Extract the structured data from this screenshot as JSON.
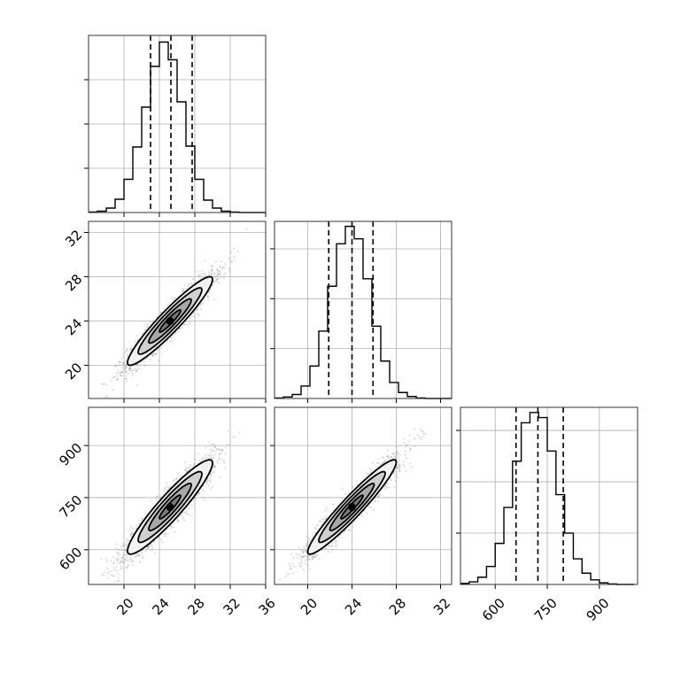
{
  "chart_data": {
    "type": "corner",
    "parameters": [
      {
        "name": "",
        "range": [
          16,
          36
        ],
        "tick_labels": [
          "20",
          "24",
          "28",
          "32",
          "36"
        ],
        "ticks": [
          20,
          24,
          28,
          32,
          36
        ],
        "quantiles": [
          23.0,
          25.3,
          27.7
        ],
        "center": 25.2,
        "sigma": 2.4
      },
      {
        "name": "",
        "range": [
          17,
          33
        ],
        "tick_labels": [
          "20",
          "24",
          "28",
          "32"
        ],
        "ticks": [
          20,
          24,
          28,
          32
        ],
        "quantiles": [
          21.9,
          24.0,
          25.9
        ],
        "center": 24.0,
        "sigma": 2.0
      },
      {
        "name": "",
        "range": [
          500,
          1010
        ],
        "tick_labels": [
          "600",
          "750",
          "900"
        ],
        "ticks": [
          600,
          750,
          900
        ],
        "quantiles": [
          660,
          723,
          796
        ],
        "center": 723,
        "sigma": 68
      }
    ],
    "histograms": [
      {
        "parameter": 0,
        "bin_edges": [
          16,
          17,
          18,
          19,
          20,
          21,
          22,
          23,
          24,
          25,
          26,
          27,
          28,
          29,
          30,
          31,
          32,
          33,
          34,
          35,
          36
        ],
        "counts": [
          1,
          3,
          10,
          30,
          75,
          148,
          238,
          330,
          385,
          345,
          250,
          150,
          75,
          28,
          10,
          3,
          1,
          0,
          0,
          0
        ],
        "yticks": [
          100,
          200,
          300
        ],
        "ymax": 400
      },
      {
        "parameter": 1,
        "bin_edges": [
          17,
          17.8,
          18.6,
          19.4,
          20.2,
          21.0,
          21.8,
          22.6,
          23.4,
          24.2,
          25.0,
          25.8,
          26.6,
          27.4,
          28.2,
          29.0,
          29.8,
          30.6,
          31.4,
          32.2,
          33.0
        ],
        "counts": [
          1,
          3,
          8,
          25,
          65,
          135,
          225,
          310,
          345,
          320,
          240,
          145,
          75,
          32,
          12,
          4,
          1,
          0,
          0,
          0
        ],
        "yticks": [
          100,
          200,
          300
        ],
        "ymax": 355
      },
      {
        "parameter": 2,
        "bin_edges": [
          500,
          525,
          550,
          575,
          600,
          625,
          650,
          675,
          700,
          725,
          750,
          775,
          800,
          825,
          850,
          875,
          900,
          925,
          950,
          975,
          1000
        ],
        "counts": [
          2,
          5,
          14,
          35,
          80,
          150,
          240,
          315,
          335,
          325,
          260,
          175,
          100,
          50,
          22,
          9,
          3,
          1,
          0,
          0
        ],
        "yticks": [
          100,
          200,
          300
        ],
        "ymax": 345
      }
    ],
    "pairs": [
      {
        "x": 0,
        "y": 1,
        "correlation": 0.94
      },
      {
        "x": 0,
        "y": 2,
        "correlation": 0.93
      },
      {
        "x": 1,
        "y": 2,
        "correlation": 0.95
      }
    ],
    "contour_levels_sigma": [
      0.5,
      1.0,
      1.5,
      2.0
    ],
    "grid": true,
    "colors": {
      "line": "#000000",
      "grid": "#b0b0b0",
      "points": "#9a9a9a"
    }
  }
}
